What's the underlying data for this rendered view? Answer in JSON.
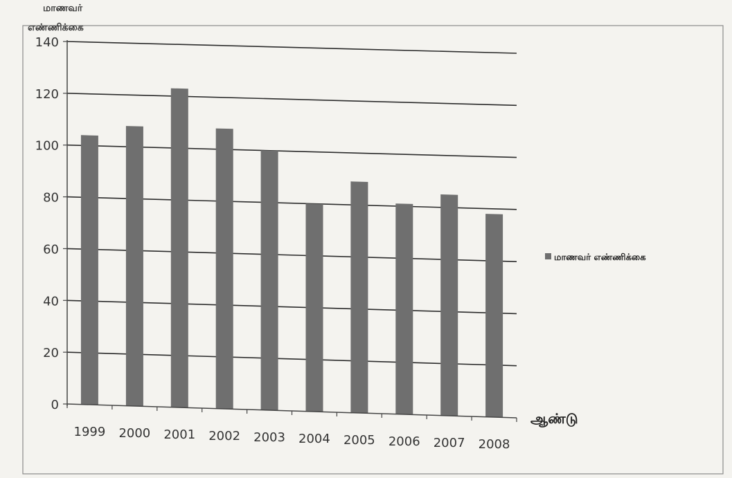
{
  "chart_data": {
    "type": "bar",
    "ylabel_lines": [
      "மாணவர்",
      "எண்ணிக்கை"
    ],
    "xlabel": "ஆண்டு",
    "categories": [
      "1999",
      "2000",
      "2001",
      "2002",
      "2003",
      "2004",
      "2005",
      "2006",
      "2007",
      "2008"
    ],
    "series": [
      {
        "name": "மாணவர் எண்ணிக்கை",
        "values": [
          104,
          108,
          123,
          108,
          100,
          80,
          89,
          81,
          85,
          78
        ]
      }
    ],
    "ylim": [
      0,
      140
    ],
    "yticks": [
      "0",
      "20",
      "40",
      "60",
      "80",
      "100",
      "120",
      "140"
    ],
    "grid": true,
    "legend_position": "right",
    "colors": {
      "bar": "#6f6f6f",
      "grid": "#2b2b2b",
      "background": "#f4f3ef"
    }
  }
}
